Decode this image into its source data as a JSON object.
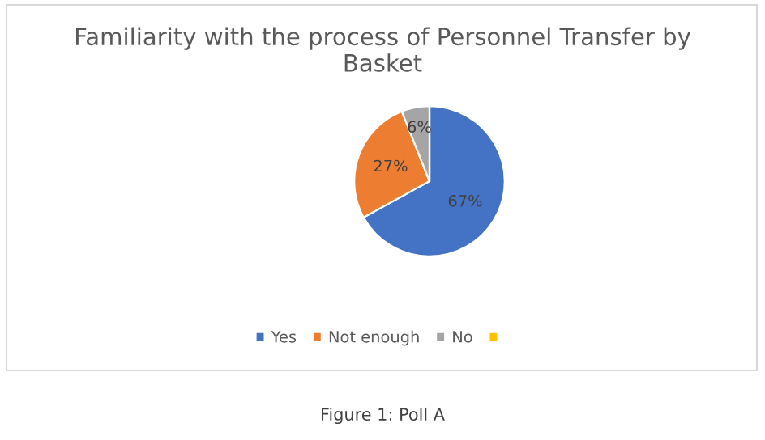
{
  "chart_data": {
    "type": "pie",
    "title": "Familiarity with the process of Personnel Transfer by Basket",
    "categories": [
      "Yes",
      "Not enough",
      "No",
      null
    ],
    "values": [
      67,
      27,
      6,
      0
    ],
    "value_labels": [
      "67%",
      "27%",
      "6%",
      null
    ],
    "colors": [
      "#4472c4",
      "#ed7d31",
      "#a5a5a5",
      "#ffc000"
    ],
    "legend": "bottom",
    "annotations": [
      "Figure 1: Poll A"
    ]
  }
}
